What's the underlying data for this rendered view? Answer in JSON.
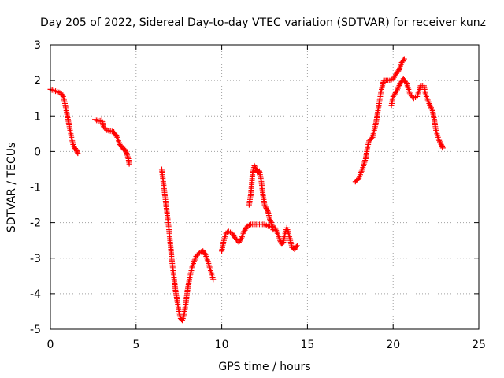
{
  "chart_data": {
    "type": "scatter",
    "title": "Day 205 of 2022, Sidereal Day-to-day VTEC variation (SDTVAR) for receiver kunz",
    "xlabel": "GPS time / hours",
    "ylabel": "SDTVAR / TECUs",
    "xlim": [
      0,
      25
    ],
    "ylim": [
      -5,
      3
    ],
    "xticks": [
      "0",
      "5",
      "10",
      "15",
      "20",
      "25"
    ],
    "yticks": [
      "-5",
      "-4",
      "-3",
      "-2",
      "-1",
      "0",
      "1",
      "2",
      "3"
    ],
    "grid": true,
    "marker": "plus",
    "color": "#ff0000",
    "segments": [
      [
        [
          0.0,
          1.75
        ],
        [
          0.2,
          1.72
        ],
        [
          0.4,
          1.68
        ],
        [
          0.6,
          1.65
        ],
        [
          0.75,
          1.55
        ],
        [
          0.85,
          1.35
        ],
        [
          0.95,
          1.1
        ],
        [
          1.05,
          0.85
        ],
        [
          1.15,
          0.6
        ],
        [
          1.25,
          0.35
        ],
        [
          1.35,
          0.15
        ],
        [
          1.5,
          0.05
        ],
        [
          1.6,
          -0.05
        ]
      ],
      [
        [
          2.6,
          0.9
        ],
        [
          2.8,
          0.85
        ],
        [
          3.0,
          0.88
        ],
        [
          3.1,
          0.7
        ],
        [
          3.3,
          0.6
        ],
        [
          3.5,
          0.58
        ],
        [
          3.7,
          0.55
        ],
        [
          3.9,
          0.4
        ],
        [
          4.05,
          0.2
        ],
        [
          4.2,
          0.1
        ],
        [
          4.35,
          0.05
        ],
        [
          4.45,
          -0.05
        ],
        [
          4.55,
          -0.2
        ],
        [
          4.6,
          -0.35
        ]
      ],
      [
        [
          6.5,
          -0.5
        ],
        [
          6.6,
          -0.9
        ],
        [
          6.7,
          -1.3
        ],
        [
          6.8,
          -1.7
        ],
        [
          6.9,
          -2.1
        ],
        [
          7.0,
          -2.6
        ],
        [
          7.1,
          -3.1
        ],
        [
          7.2,
          -3.5
        ],
        [
          7.3,
          -3.9
        ],
        [
          7.4,
          -4.2
        ],
        [
          7.5,
          -4.5
        ],
        [
          7.6,
          -4.7
        ],
        [
          7.7,
          -4.75
        ],
        [
          7.8,
          -4.6
        ],
        [
          7.9,
          -4.3
        ],
        [
          8.0,
          -3.9
        ],
        [
          8.15,
          -3.5
        ],
        [
          8.3,
          -3.2
        ],
        [
          8.5,
          -2.95
        ],
        [
          8.7,
          -2.85
        ],
        [
          8.9,
          -2.8
        ],
        [
          9.05,
          -2.9
        ],
        [
          9.2,
          -3.1
        ],
        [
          9.35,
          -3.35
        ],
        [
          9.5,
          -3.6
        ]
      ],
      [
        [
          10.0,
          -2.8
        ],
        [
          10.1,
          -2.55
        ],
        [
          10.25,
          -2.3
        ],
        [
          10.4,
          -2.25
        ],
        [
          10.6,
          -2.3
        ],
        [
          10.8,
          -2.45
        ],
        [
          11.0,
          -2.55
        ],
        [
          11.15,
          -2.45
        ],
        [
          11.3,
          -2.25
        ],
        [
          11.5,
          -2.1
        ],
        [
          11.7,
          -2.05
        ],
        [
          11.9,
          -2.05
        ],
        [
          12.1,
          -2.05
        ],
        [
          12.3,
          -2.05
        ],
        [
          12.5,
          -2.05
        ],
        [
          12.7,
          -2.1
        ],
        [
          12.9,
          -2.1
        ],
        [
          13.1,
          -2.15
        ],
        [
          13.25,
          -2.3
        ],
        [
          13.4,
          -2.5
        ],
        [
          13.5,
          -2.6
        ],
        [
          13.6,
          -2.55
        ],
        [
          13.7,
          -2.3
        ],
        [
          13.8,
          -2.15
        ],
        [
          13.9,
          -2.3
        ],
        [
          14.0,
          -2.5
        ],
        [
          14.1,
          -2.7
        ],
        [
          14.25,
          -2.75
        ],
        [
          14.4,
          -2.65
        ]
      ],
      [
        [
          11.6,
          -1.5
        ],
        [
          11.7,
          -1.2
        ],
        [
          11.8,
          -0.6
        ],
        [
          11.9,
          -0.4
        ],
        [
          12.0,
          -0.5
        ],
        [
          12.1,
          -0.6
        ],
        [
          12.2,
          -0.55
        ],
        [
          12.3,
          -0.8
        ],
        [
          12.4,
          -1.2
        ],
        [
          12.5,
          -1.5
        ],
        [
          12.6,
          -1.6
        ],
        [
          12.7,
          -1.7
        ],
        [
          12.8,
          -1.9
        ],
        [
          12.9,
          -2.0
        ],
        [
          13.0,
          -2.2
        ]
      ],
      [
        [
          17.8,
          -0.85
        ],
        [
          18.0,
          -0.75
        ],
        [
          18.2,
          -0.5
        ],
        [
          18.4,
          -0.2
        ],
        [
          18.5,
          0.1
        ],
        [
          18.6,
          0.3
        ],
        [
          18.8,
          0.4
        ],
        [
          19.0,
          0.8
        ],
        [
          19.1,
          1.1
        ],
        [
          19.2,
          1.4
        ],
        [
          19.3,
          1.7
        ],
        [
          19.45,
          2.0
        ],
        [
          19.6,
          2.0
        ],
        [
          19.8,
          2.0
        ],
        [
          20.0,
          2.05
        ],
        [
          20.2,
          2.2
        ],
        [
          20.35,
          2.3
        ],
        [
          20.5,
          2.5
        ],
        [
          20.65,
          2.6
        ]
      ],
      [
        [
          19.9,
          1.3
        ],
        [
          20.0,
          1.55
        ],
        [
          20.2,
          1.7
        ],
        [
          20.4,
          1.9
        ],
        [
          20.6,
          2.05
        ],
        [
          20.8,
          1.9
        ],
        [
          21.0,
          1.6
        ],
        [
          21.2,
          1.5
        ],
        [
          21.4,
          1.55
        ],
        [
          21.6,
          1.85
        ],
        [
          21.8,
          1.85
        ],
        [
          21.9,
          1.6
        ],
        [
          22.1,
          1.35
        ],
        [
          22.3,
          1.15
        ],
        [
          22.4,
          0.9
        ],
        [
          22.5,
          0.6
        ],
        [
          22.65,
          0.35
        ],
        [
          22.8,
          0.2
        ],
        [
          22.9,
          0.1
        ]
      ]
    ]
  }
}
